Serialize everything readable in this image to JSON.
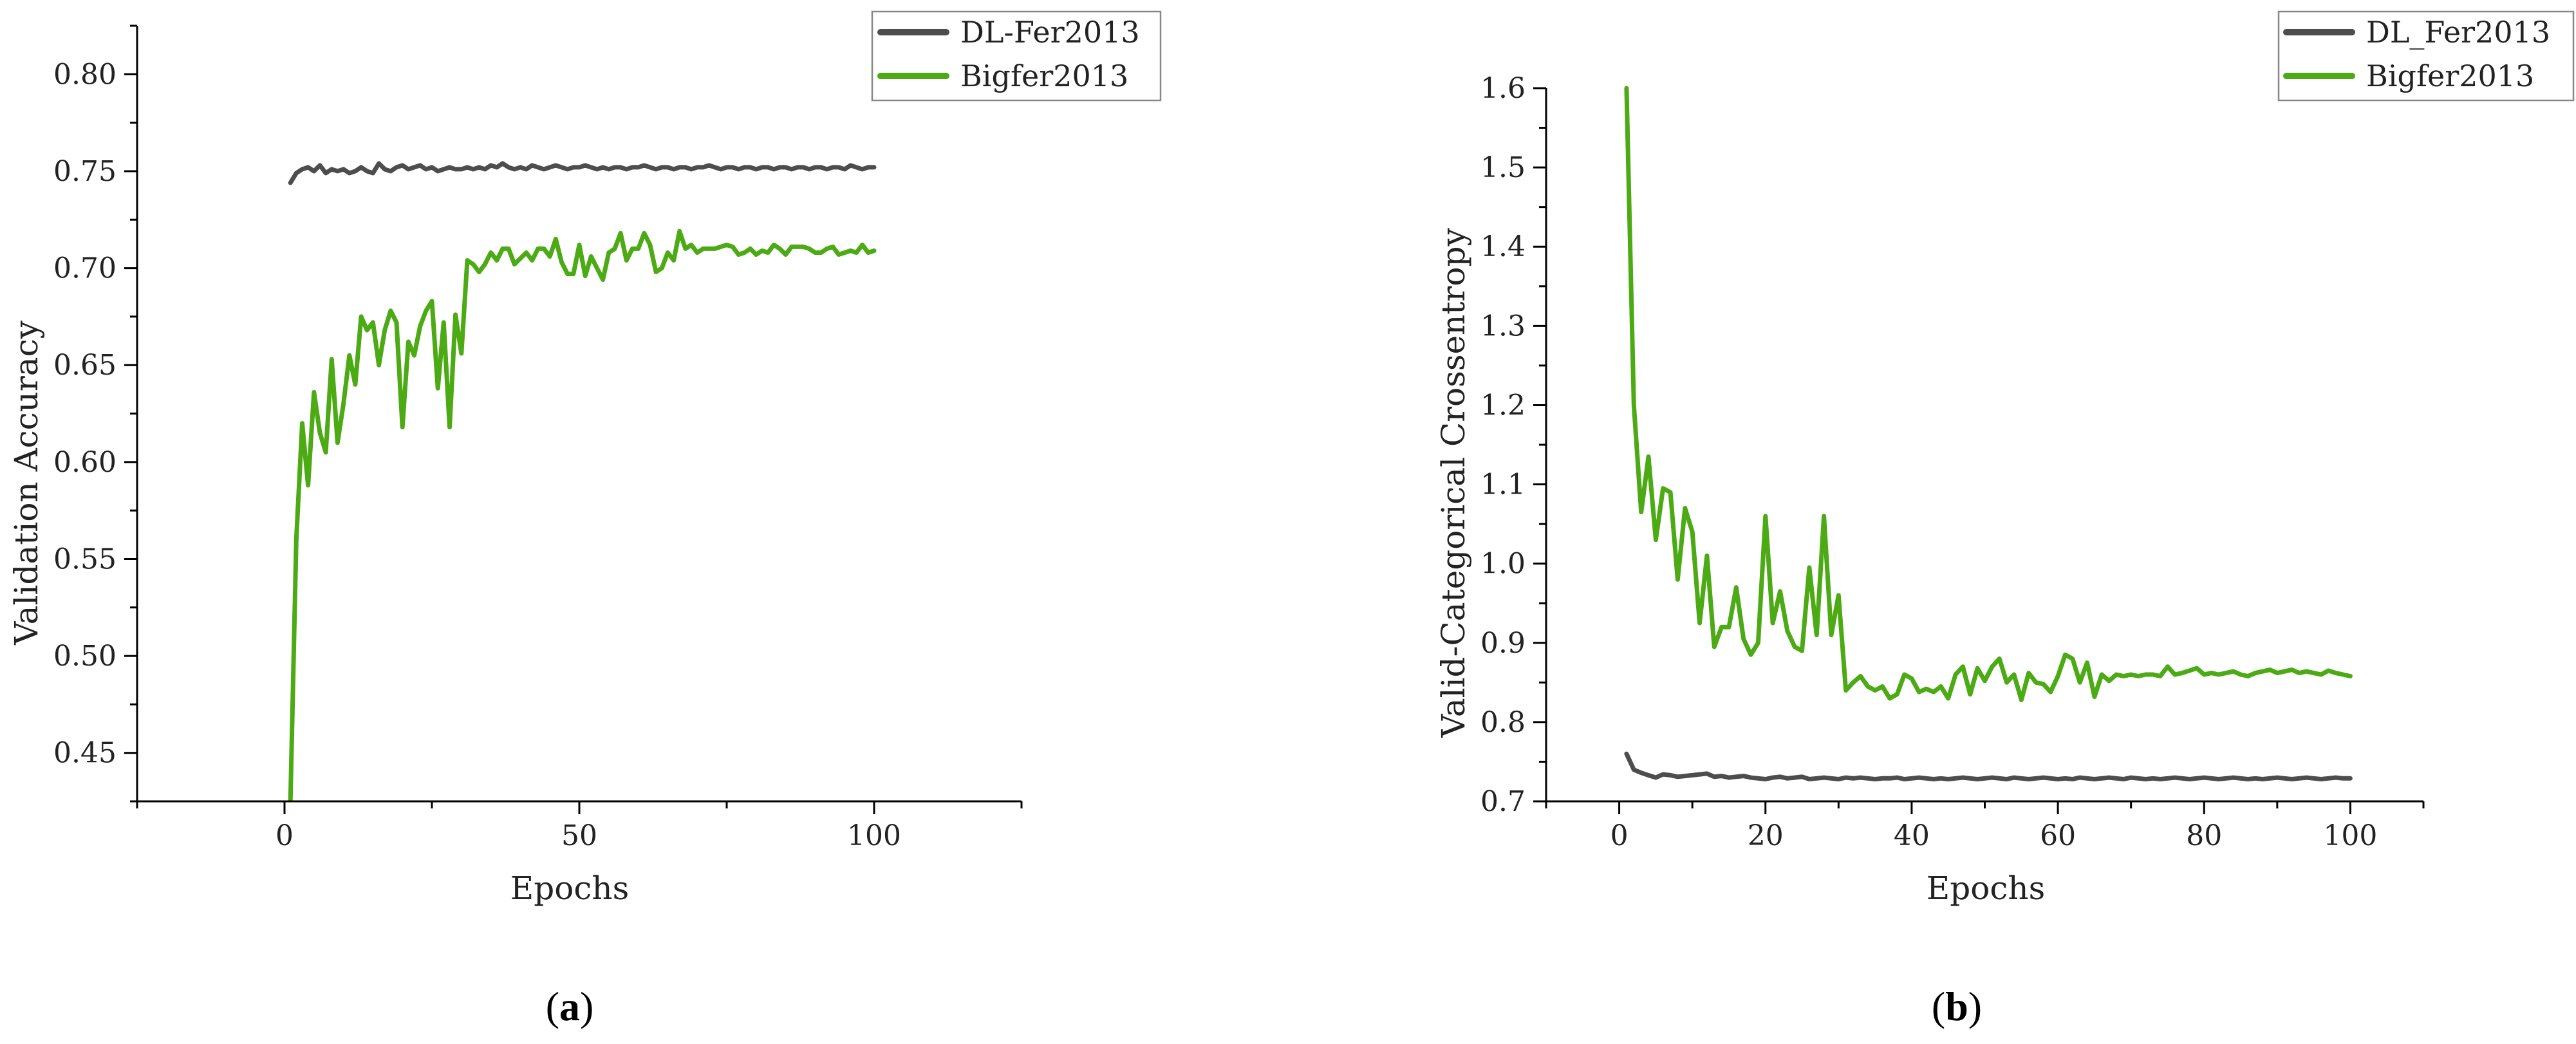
{
  "colors": {
    "series_1": "#4d4d4d",
    "series_2": "#4caa14"
  },
  "panels": [
    {
      "label_open": "(",
      "label_letter": "a",
      "label_close": ")"
    },
    {
      "label_open": "(",
      "label_letter": "b",
      "label_close": ")"
    }
  ],
  "chart_data": [
    {
      "type": "line",
      "xlabel": "Epochs",
      "ylabel": "Validation Accuracy",
      "xlim": [
        -25,
        125
      ],
      "ylim": [
        0.425,
        0.825
      ],
      "xticks": [
        0,
        50,
        100
      ],
      "yticks": [
        0.45,
        0.5,
        0.55,
        0.6,
        0.65,
        0.7,
        0.75,
        0.8
      ],
      "ytick_labels": [
        "0.45",
        "0.50",
        "0.55",
        "0.60",
        "0.65",
        "0.70",
        "0.75",
        "0.80"
      ],
      "legend_position": "top-right",
      "grid": false,
      "x": [
        1,
        2,
        3,
        4,
        5,
        6,
        7,
        8,
        9,
        10,
        11,
        12,
        13,
        14,
        15,
        16,
        17,
        18,
        19,
        20,
        21,
        22,
        23,
        24,
        25,
        26,
        27,
        28,
        29,
        30,
        31,
        32,
        33,
        34,
        35,
        36,
        37,
        38,
        39,
        40,
        41,
        42,
        43,
        44,
        45,
        46,
        47,
        48,
        49,
        50,
        51,
        52,
        53,
        54,
        55,
        56,
        57,
        58,
        59,
        60,
        61,
        62,
        63,
        64,
        65,
        66,
        67,
        68,
        69,
        70,
        71,
        72,
        73,
        74,
        75,
        76,
        77,
        78,
        79,
        80,
        81,
        82,
        83,
        84,
        85,
        86,
        87,
        88,
        89,
        90,
        91,
        92,
        93,
        94,
        95,
        96,
        97,
        98,
        99,
        100
      ],
      "series": [
        {
          "name": "DL-Fer2013",
          "values": [
            0.744,
            0.749,
            0.751,
            0.752,
            0.75,
            0.753,
            0.749,
            0.751,
            0.75,
            0.751,
            0.749,
            0.75,
            0.752,
            0.75,
            0.749,
            0.754,
            0.751,
            0.75,
            0.752,
            0.753,
            0.751,
            0.752,
            0.753,
            0.751,
            0.752,
            0.75,
            0.751,
            0.752,
            0.751,
            0.751,
            0.752,
            0.751,
            0.752,
            0.751,
            0.753,
            0.752,
            0.754,
            0.752,
            0.751,
            0.752,
            0.751,
            0.753,
            0.752,
            0.751,
            0.752,
            0.753,
            0.752,
            0.751,
            0.752,
            0.752,
            0.753,
            0.752,
            0.751,
            0.752,
            0.751,
            0.752,
            0.752,
            0.751,
            0.752,
            0.752,
            0.753,
            0.752,
            0.751,
            0.752,
            0.752,
            0.751,
            0.752,
            0.752,
            0.751,
            0.752,
            0.752,
            0.753,
            0.752,
            0.751,
            0.752,
            0.752,
            0.751,
            0.752,
            0.752,
            0.751,
            0.752,
            0.752,
            0.751,
            0.752,
            0.752,
            0.751,
            0.752,
            0.752,
            0.751,
            0.752,
            0.752,
            0.751,
            0.752,
            0.752,
            0.751,
            0.753,
            0.752,
            0.751,
            0.752,
            0.752
          ]
        },
        {
          "name": "Bigfer2013",
          "values": [
            0.425,
            0.56,
            0.62,
            0.588,
            0.636,
            0.615,
            0.605,
            0.653,
            0.61,
            0.63,
            0.655,
            0.64,
            0.675,
            0.668,
            0.672,
            0.65,
            0.668,
            0.678,
            0.672,
            0.618,
            0.662,
            0.655,
            0.67,
            0.678,
            0.683,
            0.638,
            0.672,
            0.618,
            0.676,
            0.656,
            0.704,
            0.702,
            0.698,
            0.702,
            0.708,
            0.704,
            0.71,
            0.71,
            0.702,
            0.705,
            0.708,
            0.704,
            0.71,
            0.71,
            0.706,
            0.715,
            0.703,
            0.697,
            0.697,
            0.712,
            0.696,
            0.706,
            0.7,
            0.694,
            0.708,
            0.71,
            0.718,
            0.704,
            0.71,
            0.71,
            0.718,
            0.712,
            0.698,
            0.7,
            0.708,
            0.704,
            0.719,
            0.71,
            0.712,
            0.708,
            0.71,
            0.71,
            0.71,
            0.711,
            0.712,
            0.711,
            0.707,
            0.708,
            0.71,
            0.707,
            0.709,
            0.708,
            0.712,
            0.71,
            0.707,
            0.711,
            0.711,
            0.711,
            0.71,
            0.708,
            0.708,
            0.71,
            0.711,
            0.707,
            0.708,
            0.709,
            0.708,
            0.712,
            0.708,
            0.709
          ]
        }
      ]
    },
    {
      "type": "line",
      "xlabel": "Epochs",
      "ylabel": "Valid-Categorical Crossentropy",
      "xlim": [
        -10,
        110
      ],
      "ylim": [
        0.7,
        1.6
      ],
      "xticks": [
        0,
        20,
        40,
        60,
        80,
        100
      ],
      "yticks": [
        0.7,
        0.8,
        0.9,
        1.0,
        1.1,
        1.2,
        1.3,
        1.4,
        1.5,
        1.6
      ],
      "ytick_labels": [
        "0.7",
        "0.8",
        "0.9",
        "1.0",
        "1.1",
        "1.2",
        "1.3",
        "1.4",
        "1.5",
        "1.6"
      ],
      "legend_position": "top-right",
      "grid": false,
      "x": [
        1,
        2,
        3,
        4,
        5,
        6,
        7,
        8,
        9,
        10,
        11,
        12,
        13,
        14,
        15,
        16,
        17,
        18,
        19,
        20,
        21,
        22,
        23,
        24,
        25,
        26,
        27,
        28,
        29,
        30,
        31,
        32,
        33,
        34,
        35,
        36,
        37,
        38,
        39,
        40,
        41,
        42,
        43,
        44,
        45,
        46,
        47,
        48,
        49,
        50,
        51,
        52,
        53,
        54,
        55,
        56,
        57,
        58,
        59,
        60,
        61,
        62,
        63,
        64,
        65,
        66,
        67,
        68,
        69,
        70,
        71,
        72,
        73,
        74,
        75,
        76,
        77,
        78,
        79,
        80,
        81,
        82,
        83,
        84,
        85,
        86,
        87,
        88,
        89,
        90,
        91,
        92,
        93,
        94,
        95,
        96,
        97,
        98,
        99,
        100
      ],
      "series": [
        {
          "name": "DL_Fer2013",
          "values": [
            0.76,
            0.74,
            0.736,
            0.733,
            0.73,
            0.734,
            0.733,
            0.731,
            0.732,
            0.733,
            0.734,
            0.735,
            0.731,
            0.732,
            0.73,
            0.731,
            0.732,
            0.73,
            0.729,
            0.728,
            0.73,
            0.731,
            0.729,
            0.73,
            0.731,
            0.728,
            0.729,
            0.73,
            0.729,
            0.728,
            0.73,
            0.729,
            0.73,
            0.729,
            0.728,
            0.729,
            0.729,
            0.73,
            0.728,
            0.729,
            0.73,
            0.729,
            0.728,
            0.729,
            0.728,
            0.729,
            0.73,
            0.729,
            0.728,
            0.729,
            0.73,
            0.729,
            0.728,
            0.73,
            0.729,
            0.728,
            0.729,
            0.73,
            0.729,
            0.728,
            0.729,
            0.728,
            0.73,
            0.729,
            0.728,
            0.729,
            0.73,
            0.729,
            0.728,
            0.73,
            0.729,
            0.728,
            0.729,
            0.728,
            0.729,
            0.73,
            0.729,
            0.728,
            0.729,
            0.73,
            0.729,
            0.728,
            0.729,
            0.73,
            0.729,
            0.728,
            0.729,
            0.728,
            0.729,
            0.73,
            0.729,
            0.728,
            0.729,
            0.73,
            0.729,
            0.728,
            0.729,
            0.73,
            0.729,
            0.729
          ]
        },
        {
          "name": "Bigfer2013",
          "values": [
            1.6,
            1.2,
            1.065,
            1.135,
            1.03,
            1.095,
            1.09,
            0.98,
            1.07,
            1.04,
            0.925,
            1.01,
            0.895,
            0.92,
            0.92,
            0.97,
            0.905,
            0.885,
            0.9,
            1.06,
            0.925,
            0.965,
            0.915,
            0.895,
            0.89,
            0.995,
            0.91,
            1.06,
            0.91,
            0.96,
            0.84,
            0.85,
            0.858,
            0.845,
            0.84,
            0.845,
            0.83,
            0.835,
            0.86,
            0.855,
            0.838,
            0.842,
            0.838,
            0.845,
            0.83,
            0.86,
            0.87,
            0.835,
            0.868,
            0.852,
            0.87,
            0.88,
            0.85,
            0.86,
            0.828,
            0.862,
            0.85,
            0.848,
            0.838,
            0.858,
            0.885,
            0.88,
            0.85,
            0.875,
            0.832,
            0.86,
            0.852,
            0.86,
            0.858,
            0.86,
            0.858,
            0.86,
            0.86,
            0.858,
            0.87,
            0.86,
            0.862,
            0.865,
            0.868,
            0.86,
            0.862,
            0.86,
            0.862,
            0.864,
            0.86,
            0.858,
            0.862,
            0.864,
            0.866,
            0.862,
            0.864,
            0.866,
            0.862,
            0.864,
            0.862,
            0.86,
            0.865,
            0.862,
            0.86,
            0.858
          ]
        }
      ]
    }
  ]
}
